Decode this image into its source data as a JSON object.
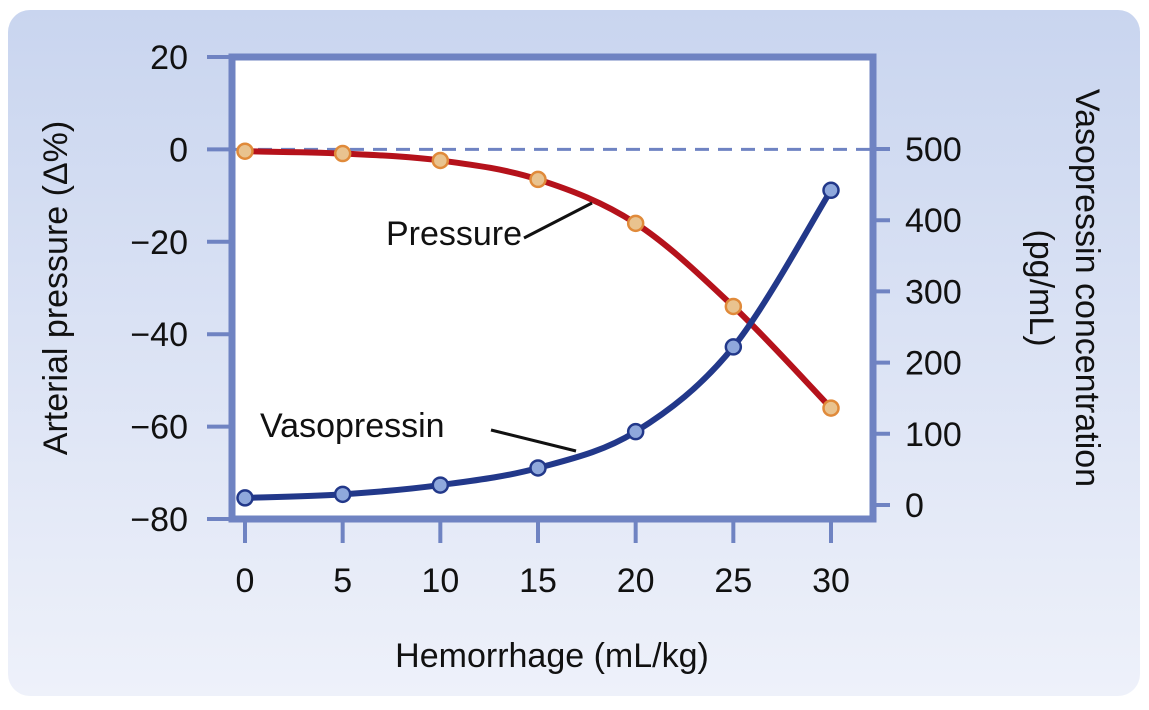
{
  "chart_data": {
    "type": "line",
    "title": "",
    "xlabel": "Hemorrhage (mL/kg)",
    "ylabel_left": "Arterial pressure (Δ%)",
    "ylabel_right_line1": "Vasopressin concentration",
    "ylabel_right_line2": "(pg/mL)",
    "x": [
      0,
      5,
      10,
      15,
      20,
      25,
      30
    ],
    "xlim": [
      0,
      30
    ],
    "ylim_left": [
      -80,
      20
    ],
    "ylim_right": [
      0,
      500
    ],
    "x_ticks": [
      "0",
      "5",
      "10",
      "15",
      "20",
      "25",
      "30"
    ],
    "y_left_ticks": [
      "20",
      "0",
      "−20",
      "−40",
      "−60",
      "−80"
    ],
    "y_left_tick_values": [
      20,
      0,
      -20,
      -40,
      -60,
      -80
    ],
    "y_right_ticks": [
      "500",
      "400",
      "300",
      "200",
      "100",
      "0"
    ],
    "y_right_tick_values": [
      500,
      400,
      300,
      200,
      100,
      0
    ],
    "reference_line": {
      "axis": "left",
      "value": 0,
      "style": "dashed"
    },
    "grid": false,
    "series": [
      {
        "name": "Pressure",
        "axis": "left",
        "values": [
          -0.4,
          -0.9,
          -2.4,
          -6.5,
          -16,
          -34,
          -56
        ],
        "line_color": "#b5121b",
        "marker_fill": "#e9c38f",
        "marker_stroke": "#e08a3a"
      },
      {
        "name": "Vasopressin",
        "axis": "right",
        "values": [
          10,
          15,
          28,
          52,
          103,
          222,
          442
        ],
        "line_color": "#22388a",
        "marker_fill": "#8fa8dc",
        "marker_stroke": "#22388a"
      }
    ],
    "colors": {
      "axis": "#6f83c2",
      "background_top": "#c9d5ef",
      "background_bottom": "#eef1fa"
    }
  }
}
